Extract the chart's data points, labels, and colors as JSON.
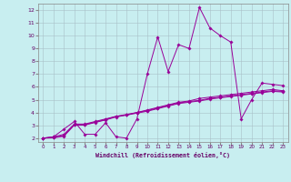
{
  "xlabel": "Windchill (Refroidissement éolien,°C)",
  "bg_color": "#c8eef0",
  "grid_color": "#a8c0c8",
  "line_color": "#990099",
  "xlim": [
    -0.5,
    23.5
  ],
  "ylim": [
    1.7,
    12.5
  ],
  "xticks": [
    0,
    1,
    2,
    3,
    4,
    5,
    6,
    7,
    8,
    9,
    10,
    11,
    12,
    13,
    14,
    15,
    16,
    17,
    18,
    19,
    20,
    21,
    22,
    23
  ],
  "yticks": [
    2,
    3,
    4,
    5,
    6,
    7,
    8,
    9,
    10,
    11,
    12
  ],
  "lines": [
    {
      "x": [
        0,
        1,
        2,
        3,
        4,
        5,
        6,
        7,
        8,
        9,
        10,
        11,
        12,
        13,
        14,
        15,
        16,
        17,
        18,
        19,
        20,
        21,
        22,
        23
      ],
      "y": [
        2.0,
        2.1,
        2.7,
        3.3,
        2.3,
        2.3,
        3.2,
        2.1,
        2.0,
        3.5,
        7.0,
        9.9,
        7.2,
        9.3,
        9.0,
        12.2,
        10.6,
        10.0,
        9.5,
        3.5,
        5.0,
        6.3,
        6.2,
        6.1
      ]
    },
    {
      "x": [
        0,
        1,
        2,
        3,
        4,
        5,
        6,
        7,
        8,
        9,
        10,
        11,
        12,
        13,
        14,
        15,
        16,
        17,
        18,
        19,
        20,
        21,
        22,
        23
      ],
      "y": [
        2.0,
        2.1,
        2.3,
        3.1,
        3.1,
        3.3,
        3.5,
        3.7,
        3.8,
        4.0,
        4.2,
        4.4,
        4.6,
        4.8,
        4.9,
        5.1,
        5.2,
        5.3,
        5.4,
        5.5,
        5.6,
        5.7,
        5.8,
        5.7
      ]
    },
    {
      "x": [
        0,
        1,
        2,
        3,
        4,
        5,
        6,
        7,
        8,
        9,
        10,
        11,
        12,
        13,
        14,
        15,
        16,
        17,
        18,
        19,
        20,
        21,
        22,
        23
      ],
      "y": [
        2.0,
        2.05,
        2.2,
        3.05,
        3.05,
        3.25,
        3.45,
        3.7,
        3.85,
        4.0,
        4.15,
        4.35,
        4.55,
        4.75,
        4.85,
        4.95,
        5.1,
        5.2,
        5.3,
        5.4,
        5.5,
        5.6,
        5.7,
        5.65
      ]
    },
    {
      "x": [
        0,
        1,
        2,
        3,
        4,
        5,
        6,
        7,
        8,
        9,
        10,
        11,
        12,
        13,
        14,
        15,
        16,
        17,
        18,
        19,
        20,
        21,
        22,
        23
      ],
      "y": [
        2.0,
        2.02,
        2.15,
        3.02,
        3.02,
        3.22,
        3.42,
        3.65,
        3.8,
        3.95,
        4.1,
        4.3,
        4.5,
        4.7,
        4.8,
        4.9,
        5.05,
        5.15,
        5.25,
        5.35,
        5.45,
        5.55,
        5.65,
        5.6
      ]
    }
  ]
}
